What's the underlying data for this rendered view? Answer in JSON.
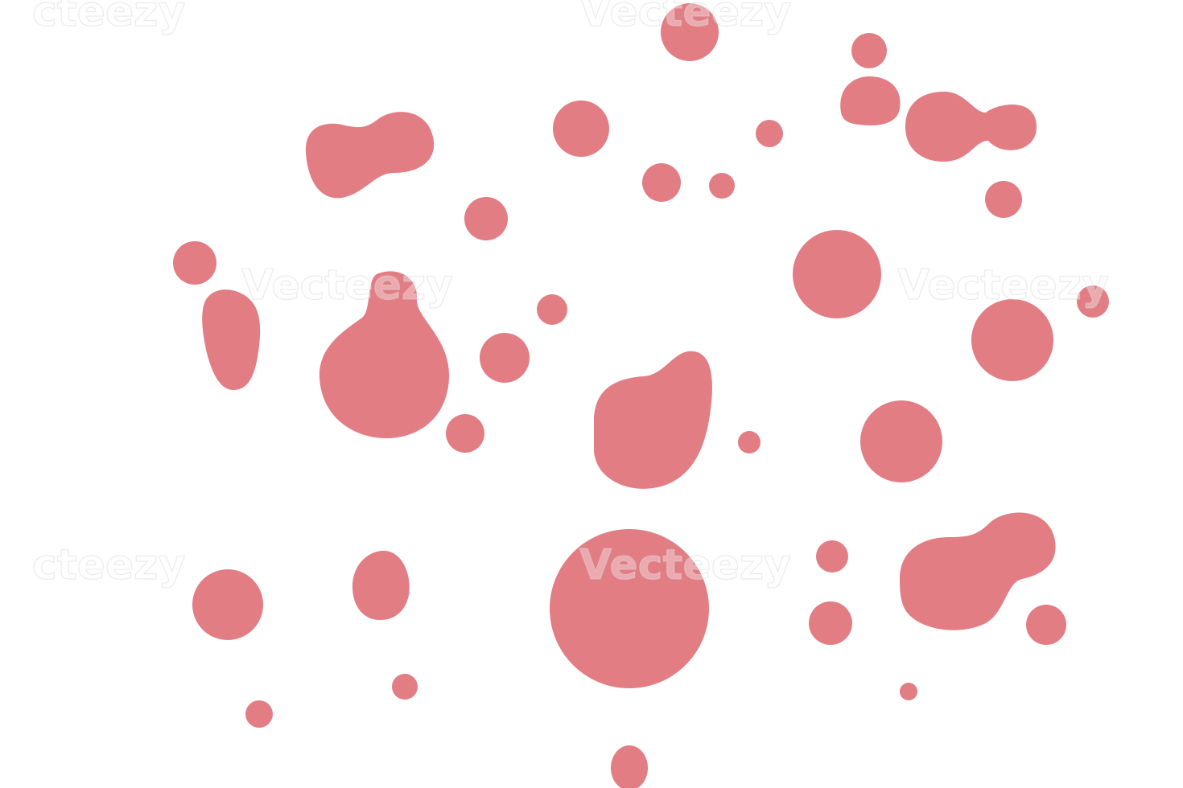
{
  "watermarks": [
    "cteezy",
    "Vecteezy",
    "Vecteezy",
    "Vecteezy",
    "cteezy",
    "Vecteezy"
  ]
}
